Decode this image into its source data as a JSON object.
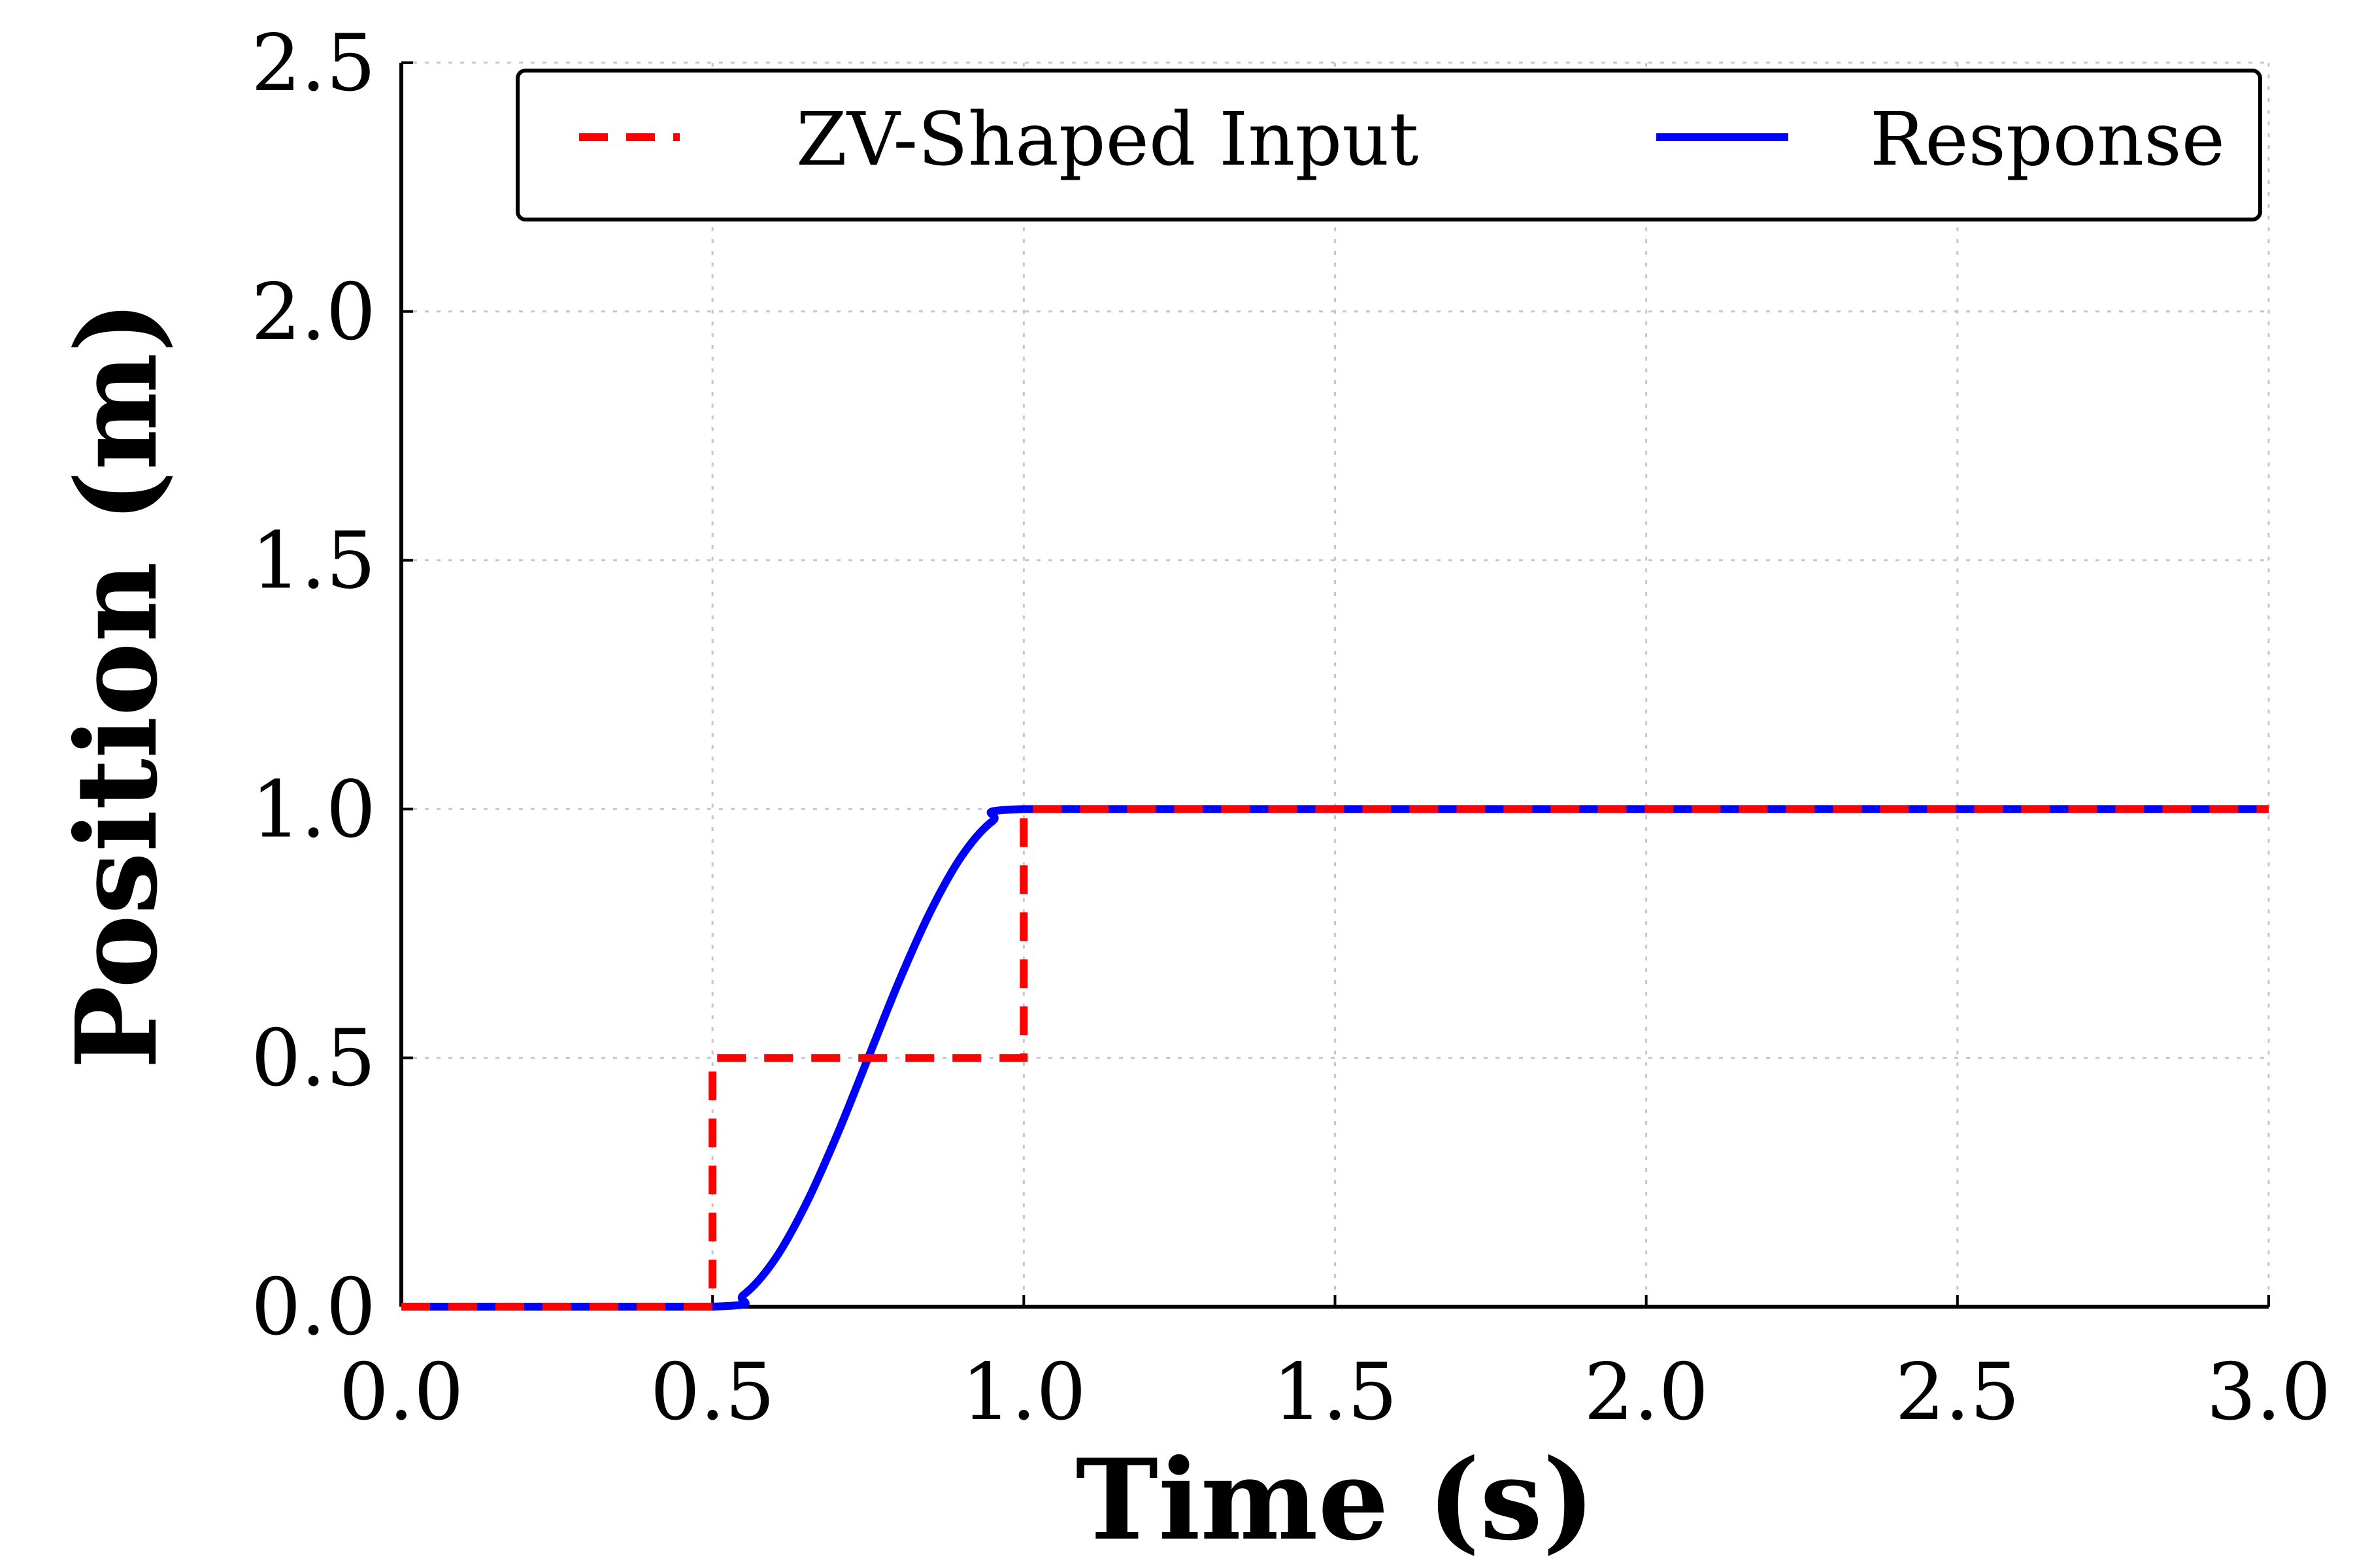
{
  "chart_data": {
    "type": "line",
    "title": "",
    "xlabel": "Time (s)",
    "ylabel": "Position (m)",
    "xlim": [
      0.0,
      3.0
    ],
    "ylim": [
      0.0,
      2.5
    ],
    "x_ticks": [
      "0.0",
      "0.5",
      "1.0",
      "1.5",
      "2.0",
      "2.5",
      "3.0"
    ],
    "y_ticks": [
      "0.0",
      "0.5",
      "1.0",
      "1.5",
      "2.0",
      "2.5"
    ],
    "grid": true,
    "legend_position": "top-right",
    "series": [
      {
        "name": "ZV-Shaped Input",
        "color": "#ff0000",
        "style": "dashed",
        "x": [
          0.0,
          0.5,
          0.5,
          1.0,
          1.0,
          3.0
        ],
        "y": [
          0.0,
          0.0,
          0.5,
          0.5,
          1.0,
          1.0
        ]
      },
      {
        "name": "Response",
        "color": "#0000ff",
        "style": "solid",
        "x": [
          0.0,
          0.5,
          0.55,
          0.6,
          0.65,
          0.7,
          0.75,
          0.8,
          0.85,
          0.9,
          0.95,
          1.0,
          1.5,
          2.0,
          2.5,
          3.0
        ],
        "y": [
          0.0,
          0.0,
          0.024,
          0.095,
          0.206,
          0.345,
          0.5,
          0.655,
          0.794,
          0.905,
          0.976,
          1.0,
          1.0,
          1.0,
          1.0,
          1.0
        ]
      }
    ]
  }
}
